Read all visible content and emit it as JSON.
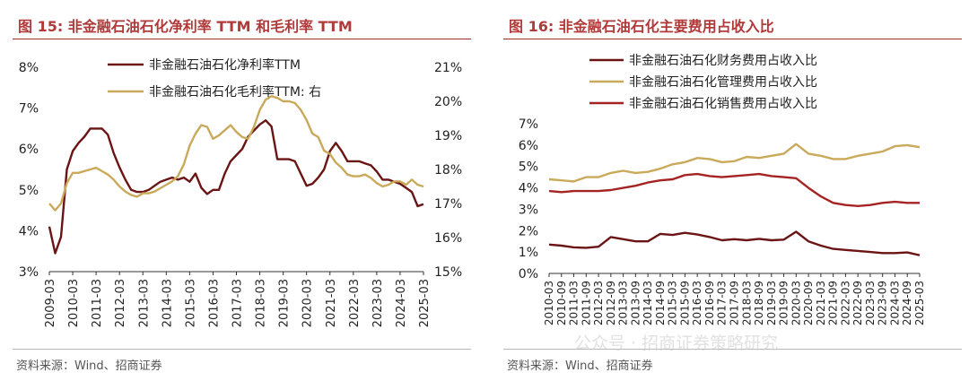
{
  "panels": {
    "left": {
      "title": "图 15:  非金融石油石化净利率 TTM 和毛利率 TTM",
      "source": "资料来源：Wind、招商证券"
    },
    "right": {
      "title": "图 16:  非金融石油石化主要费用占收入比",
      "source": "资料来源：Wind、招商证券"
    }
  },
  "watermark": "公众号 · 招商证券策略研究",
  "colors": {
    "accent": "#b03a3a",
    "dark": "#6b1414",
    "gold": "#c9a95a",
    "red": "#a52323"
  },
  "chart_data": [
    {
      "type": "line",
      "x_ticks": [
        "2009-03",
        "2010-03",
        "2011-03",
        "2012-03",
        "2013-03",
        "2014-03",
        "2015-03",
        "2016-03",
        "2017-03",
        "2018-03",
        "2019-03",
        "2020-03",
        "2021-03",
        "2022-03",
        "2023-03",
        "2024-03",
        "2025-03"
      ],
      "y_left": {
        "ticks": [
          "3%",
          "4%",
          "5%",
          "6%",
          "7%",
          "8%"
        ],
        "lim": [
          3,
          8
        ]
      },
      "y_right": {
        "ticks": [
          "15%",
          "16%",
          "17%",
          "18%",
          "19%",
          "20%",
          "21%"
        ],
        "lim": [
          15,
          21
        ]
      },
      "legend_position": "top-center",
      "series": [
        {
          "name": "非金融石油石化净利率TTM",
          "axis": "left",
          "color": "#6b1414",
          "x": [
            2009.0,
            2009.25,
            2009.5,
            2009.75,
            2010.0,
            2010.25,
            2010.5,
            2010.75,
            2011.0,
            2011.25,
            2011.5,
            2011.75,
            2012.0,
            2012.25,
            2012.5,
            2012.75,
            2013.0,
            2013.25,
            2013.5,
            2013.75,
            2014.0,
            2014.25,
            2014.5,
            2014.75,
            2015.0,
            2015.25,
            2015.5,
            2015.75,
            2016.0,
            2016.25,
            2016.5,
            2016.75,
            2017.0,
            2017.25,
            2017.5,
            2017.75,
            2018.0,
            2018.25,
            2018.5,
            2018.75,
            2019.0,
            2019.25,
            2019.5,
            2019.75,
            2020.0,
            2020.25,
            2020.5,
            2020.75,
            2021.0,
            2021.25,
            2021.5,
            2021.75,
            2022.0,
            2022.25,
            2022.5,
            2022.75,
            2023.0,
            2023.25,
            2023.5,
            2023.75,
            2024.0,
            2024.25,
            2024.5,
            2024.75,
            2025.0
          ],
          "values": [
            4.1,
            3.45,
            3.85,
            5.5,
            5.95,
            6.15,
            6.3,
            6.5,
            6.5,
            6.5,
            6.35,
            5.9,
            5.55,
            5.25,
            5.0,
            4.95,
            4.95,
            5.0,
            5.1,
            5.2,
            5.25,
            5.3,
            5.25,
            5.3,
            5.2,
            5.4,
            5.05,
            4.9,
            5.0,
            5.0,
            5.4,
            5.7,
            5.85,
            6.0,
            6.3,
            6.45,
            6.6,
            6.7,
            6.55,
            5.75,
            5.75,
            5.75,
            5.7,
            5.4,
            5.1,
            5.15,
            5.3,
            5.5,
            5.95,
            6.15,
            5.95,
            5.7,
            5.7,
            5.7,
            5.65,
            5.6,
            5.45,
            5.25,
            5.25,
            5.2,
            5.15,
            5.05,
            4.95,
            4.6,
            4.65
          ]
        },
        {
          "name": "非金融石油石化毛利率TTM: 右",
          "axis": "right",
          "color": "#c9a95a",
          "x": [
            2009.0,
            2009.25,
            2009.5,
            2009.75,
            2010.0,
            2010.25,
            2010.5,
            2010.75,
            2011.0,
            2011.25,
            2011.5,
            2011.75,
            2012.0,
            2012.25,
            2012.5,
            2012.75,
            2013.0,
            2013.25,
            2013.5,
            2013.75,
            2014.0,
            2014.25,
            2014.5,
            2014.75,
            2015.0,
            2015.25,
            2015.5,
            2015.75,
            2016.0,
            2016.25,
            2016.5,
            2016.75,
            2017.0,
            2017.25,
            2017.5,
            2017.75,
            2018.0,
            2018.25,
            2018.5,
            2018.75,
            2019.0,
            2019.25,
            2019.5,
            2019.75,
            2020.0,
            2020.25,
            2020.5,
            2020.75,
            2021.0,
            2021.25,
            2021.5,
            2021.75,
            2022.0,
            2022.25,
            2022.5,
            2022.75,
            2023.0,
            2023.25,
            2023.5,
            2023.75,
            2024.0,
            2024.25,
            2024.5,
            2024.75,
            2025.0
          ],
          "values": [
            17.0,
            16.8,
            17.0,
            17.6,
            17.9,
            17.9,
            17.95,
            18.0,
            18.05,
            17.95,
            17.85,
            17.7,
            17.5,
            17.35,
            17.25,
            17.2,
            17.3,
            17.3,
            17.35,
            17.45,
            17.55,
            17.65,
            17.8,
            18.15,
            18.7,
            19.05,
            19.3,
            19.25,
            18.9,
            19.0,
            19.15,
            19.3,
            19.1,
            18.95,
            18.9,
            19.25,
            19.75,
            20.05,
            20.15,
            20.1,
            20.0,
            20.0,
            19.95,
            19.75,
            19.45,
            19.05,
            18.95,
            18.55,
            18.45,
            18.2,
            18.05,
            17.85,
            17.8,
            17.8,
            17.85,
            17.75,
            17.6,
            17.5,
            17.55,
            17.65,
            17.65,
            17.55,
            17.7,
            17.55,
            17.5
          ]
        }
      ]
    },
    {
      "type": "line",
      "x_ticks": [
        "2010-03",
        "2010-09",
        "2011-03",
        "2011-09",
        "2012-03",
        "2012-09",
        "2013-03",
        "2013-09",
        "2014-03",
        "2014-09",
        "2015-03",
        "2015-09",
        "2016-03",
        "2016-09",
        "2017-03",
        "2017-09",
        "2018-03",
        "2018-09",
        "2019-03",
        "2019-09",
        "2020-03",
        "2020-09",
        "2021-03",
        "2021-09",
        "2022-03",
        "2022-09",
        "2023-03",
        "2023-09",
        "2024-03",
        "2024-09",
        "2025-03"
      ],
      "y": {
        "ticks": [
          "0%",
          "1%",
          "2%",
          "3%",
          "4%",
          "5%",
          "6%",
          "7%"
        ],
        "lim": [
          0,
          7
        ]
      },
      "legend_position": "top-center",
      "series": [
        {
          "name": "非金融石油石化财务费用占收入比",
          "color": "#6b1414",
          "values": [
            1.35,
            1.3,
            1.22,
            1.2,
            1.25,
            1.7,
            1.6,
            1.5,
            1.5,
            1.85,
            1.8,
            1.9,
            1.82,
            1.7,
            1.55,
            1.6,
            1.55,
            1.62,
            1.55,
            1.58,
            1.95,
            1.5,
            1.3,
            1.15,
            1.1,
            1.05,
            1.0,
            0.95,
            0.95,
            0.98,
            0.85
          ]
        },
        {
          "name": "非金融石油石化管理费用占收入比",
          "color": "#c9a95a",
          "values": [
            4.4,
            4.35,
            4.3,
            4.5,
            4.5,
            4.7,
            4.8,
            4.7,
            4.75,
            4.9,
            5.1,
            5.2,
            5.4,
            5.35,
            5.2,
            5.25,
            5.45,
            5.4,
            5.5,
            5.6,
            6.05,
            5.6,
            5.5,
            5.35,
            5.35,
            5.5,
            5.6,
            5.7,
            5.95,
            6.0,
            5.9
          ]
        },
        {
          "name": "非金融石油石化销售费用占收入比",
          "color": "#a52323",
          "values": [
            3.85,
            3.8,
            3.85,
            3.85,
            3.85,
            3.9,
            4.0,
            4.1,
            4.25,
            4.35,
            4.4,
            4.6,
            4.65,
            4.55,
            4.5,
            4.55,
            4.6,
            4.65,
            4.55,
            4.5,
            4.45,
            4.0,
            3.6,
            3.3,
            3.2,
            3.15,
            3.2,
            3.3,
            3.35,
            3.3,
            3.3
          ]
        }
      ]
    }
  ]
}
